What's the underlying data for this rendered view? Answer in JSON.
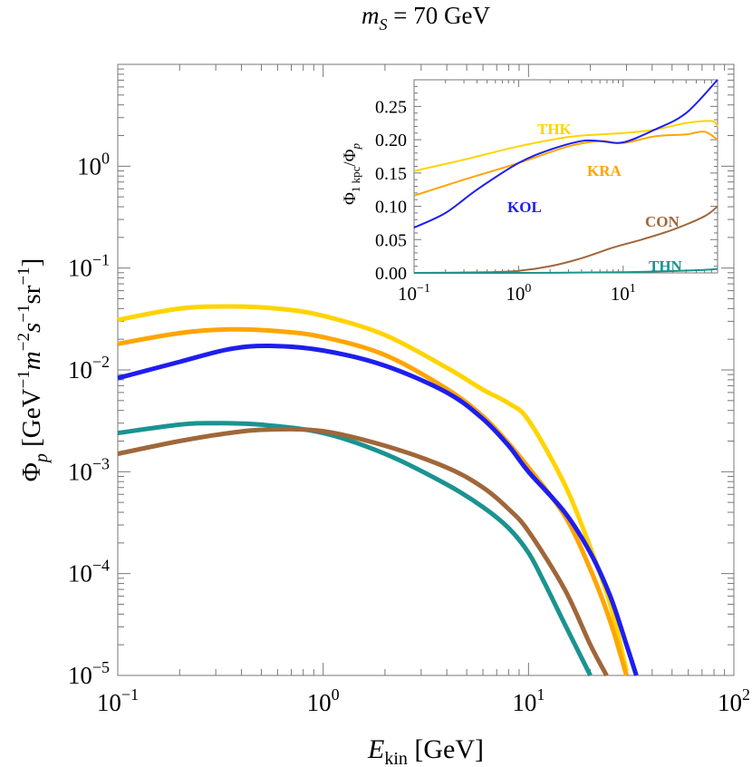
{
  "chart_data": [
    {
      "type": "line",
      "title_var": "m",
      "title_sub": "S",
      "title_rest": " = 70 GeV",
      "xlabel_var": "E",
      "xlabel_sub": "kin",
      "xlabel_unit": " [GeV]",
      "ylabel_phi": "Φ",
      "ylabel_sub": "p",
      "ylabel_unit": "[GeV",
      "ylabel_m": "m",
      "ylabel_s": "s",
      "ylabel_sr": "sr",
      "ylabel_close": "]",
      "xscale": "log",
      "yscale": "log",
      "xlim": [
        0.1,
        100
      ],
      "ylim": [
        1e-05,
        10
      ],
      "x_tick_labels": [
        {
          "base": "10",
          "exp": "−1",
          "value": 0.1
        },
        {
          "base": "10",
          "exp": "0",
          "value": 1
        },
        {
          "base": "10",
          "exp": "1",
          "value": 10
        },
        {
          "base": "10",
          "exp": "2",
          "value": 100
        }
      ],
      "y_tick_labels": [
        {
          "base": "10",
          "exp": "−5",
          "value": 1e-05
        },
        {
          "base": "10",
          "exp": "−4",
          "value": 0.0001
        },
        {
          "base": "10",
          "exp": "−3",
          "value": 0.001
        },
        {
          "base": "10",
          "exp": "−2",
          "value": 0.01
        },
        {
          "base": "10",
          "exp": "−1",
          "value": 0.1
        },
        {
          "base": "10",
          "exp": "0",
          "value": 1
        }
      ],
      "series": [
        {
          "key": "THK",
          "color": "#FFD400",
          "x": [
            0.1,
            0.2,
            0.35,
            0.6,
            1,
            2,
            4,
            6,
            8,
            10,
            15,
            20,
            25,
            30
          ],
          "y": [
            0.031,
            0.04,
            0.042,
            0.04,
            0.034,
            0.022,
            0.0105,
            0.0064,
            0.0047,
            0.0032,
            0.00075,
            0.00018,
            5e-05,
            1.1e-05
          ]
        },
        {
          "key": "KRA",
          "color": "#FFA500",
          "x": [
            0.1,
            0.2,
            0.35,
            0.6,
            1,
            2,
            4,
            6,
            8,
            10,
            15,
            20,
            25,
            30
          ],
          "y": [
            0.018,
            0.023,
            0.025,
            0.024,
            0.021,
            0.014,
            0.0065,
            0.0035,
            0.0019,
            0.0011,
            0.00037,
            0.00011,
            3.4e-05,
            1e-05
          ]
        },
        {
          "key": "KOL",
          "color": "#1E1EEE",
          "x": [
            0.1,
            0.2,
            0.35,
            0.55,
            1,
            2,
            4,
            6,
            8,
            10,
            15,
            20,
            25,
            30,
            33.5
          ],
          "y": [
            0.0083,
            0.012,
            0.016,
            0.0172,
            0.0155,
            0.011,
            0.006,
            0.0033,
            0.0018,
            0.001,
            0.0004,
            0.00016,
            6e-05,
            2e-05,
            1e-05
          ]
        },
        {
          "key": "THN",
          "color": "#1A9391",
          "x": [
            0.1,
            0.2,
            0.3,
            0.5,
            1,
            2,
            4,
            6,
            8,
            10,
            12,
            15,
            20
          ],
          "y": [
            0.0024,
            0.0029,
            0.003,
            0.0029,
            0.0024,
            0.0015,
            0.00075,
            0.00045,
            0.00028,
            0.00016,
            8e-05,
            3.2e-05,
            1e-05
          ]
        },
        {
          "key": "CON",
          "color": "#A0673A",
          "x": [
            0.1,
            0.2,
            0.35,
            0.55,
            1,
            2,
            4,
            6,
            8,
            10,
            15,
            20,
            24
          ],
          "y": [
            0.0015,
            0.002,
            0.0024,
            0.0026,
            0.0025,
            0.0018,
            0.0011,
            0.0007,
            0.00043,
            0.00026,
            7e-05,
            2e-05,
            1e-05
          ]
        }
      ]
    },
    {
      "type": "line",
      "ylabel_phi": "Φ",
      "ylabel_sub1": "1 kpc",
      "ylabel_slash": "/Φ",
      "ylabel_sub2": "p",
      "xscale": "log",
      "xlim": [
        0.1,
        80
      ],
      "ylim": [
        0,
        0.29
      ],
      "x_tick_labels": [
        {
          "base": "10",
          "exp": "−1",
          "value": 0.1
        },
        {
          "base": "10",
          "exp": "0",
          "value": 1
        },
        {
          "base": "10",
          "exp": "1",
          "value": 10
        }
      ],
      "y_tick_labels": [
        "0.00",
        "0.05",
        "0.10",
        "0.15",
        "0.20",
        "0.25"
      ],
      "y_tick_values": [
        0,
        0.05,
        0.1,
        0.15,
        0.2,
        0.25
      ],
      "series": [
        {
          "name": "THK",
          "color": "#FFD400",
          "x": [
            0.1,
            0.3,
            1,
            3,
            6,
            10,
            20,
            40,
            70,
            80
          ],
          "y": [
            0.153,
            0.17,
            0.19,
            0.204,
            0.208,
            0.21,
            0.215,
            0.225,
            0.228,
            0.22
          ]
        },
        {
          "name": "KRA",
          "color": "#FFA500",
          "x": [
            0.1,
            0.3,
            1,
            3,
            6,
            10,
            20,
            40,
            60,
            80
          ],
          "y": [
            0.116,
            0.14,
            0.165,
            0.19,
            0.198,
            0.195,
            0.205,
            0.208,
            0.212,
            0.2
          ]
        },
        {
          "name": "KOL",
          "color": "#1E1EEE",
          "x": [
            0.1,
            0.2,
            0.4,
            1,
            2,
            4,
            6,
            10,
            20,
            40,
            80
          ],
          "y": [
            0.068,
            0.09,
            0.125,
            0.165,
            0.185,
            0.198,
            0.198,
            0.196,
            0.215,
            0.24,
            0.29
          ]
        },
        {
          "name": "CON",
          "color": "#A0673A",
          "x": [
            0.1,
            0.5,
            1,
            2,
            4,
            8,
            15,
            30,
            60,
            80
          ],
          "y": [
            0.0,
            0.001,
            0.003,
            0.01,
            0.022,
            0.038,
            0.05,
            0.065,
            0.085,
            0.1
          ]
        },
        {
          "name": "THN",
          "color": "#1A9391",
          "x": [
            0.1,
            1,
            10,
            50,
            80
          ],
          "y": [
            0.0,
            0.0,
            0.001,
            0.004,
            0.006
          ]
        }
      ]
    }
  ]
}
